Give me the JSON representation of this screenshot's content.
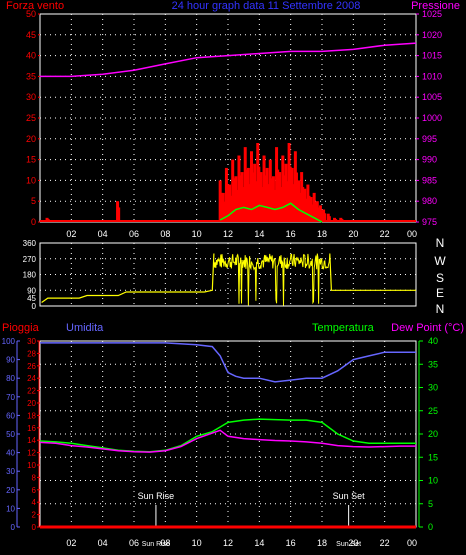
{
  "header": {
    "left_title": "Forza vento",
    "center_title": "24 hour graph data  11 Settembre 2008",
    "right_title": "Pressione"
  },
  "colors": {
    "background": "#000000",
    "grid": "#ffffff",
    "wind": "#ff0000",
    "gust": "#00ff00",
    "pressure": "#ff00ff",
    "direction": "#ffff00",
    "rain": "#ff0000",
    "humidity": "#6666ff",
    "temperature": "#00ff00",
    "dewpoint": "#ff00ff",
    "sun_markers": "#ffffff"
  },
  "bottom_header": {
    "rain_label": "Pioggia",
    "humidity_label": "Umidita",
    "temperature_label": "Temperatura",
    "dewpoint_label": "Dew Point (°C)"
  },
  "direction_letters": [
    "N",
    "W",
    "S",
    "E",
    "N"
  ],
  "sun_rise_label": "Sun Rise",
  "sun_set_label": "Sun Set",
  "chart_data": [
    {
      "type": "line",
      "title": "24 hour graph data  11 Settembre 2008",
      "x_tick_labels": [
        "02",
        "04",
        "06",
        "08",
        "10",
        "12",
        "14",
        "16",
        "18",
        "20",
        "22",
        "00"
      ],
      "left_axis": {
        "ticks": [
          0,
          5,
          10,
          15,
          20,
          25,
          30,
          35,
          40,
          45,
          50
        ],
        "ylim": [
          0,
          50
        ]
      },
      "right_axis": {
        "ticks": [
          975,
          980,
          985,
          990,
          995,
          1000,
          1005,
          1010,
          1015,
          1020,
          1025
        ],
        "ylim": [
          975,
          1025
        ]
      },
      "series": [
        {
          "name": "Forza vento",
          "axis": "left",
          "x": [
            0,
            1,
            2,
            3,
            4,
            5,
            6,
            7,
            8,
            9,
            10,
            11,
            12,
            13,
            14,
            15,
            16,
            17,
            18,
            19,
            20,
            21,
            22,
            23,
            24
          ],
          "values": [
            0,
            0,
            0,
            0,
            0,
            0,
            0,
            0,
            0,
            0,
            0,
            0,
            0,
            0,
            0,
            0,
            0,
            0,
            0,
            0,
            0,
            0,
            0,
            0,
            0
          ]
        },
        {
          "name": "Pressione",
          "axis": "right",
          "x": [
            0,
            2,
            4,
            6,
            8,
            10,
            12,
            14,
            16,
            18,
            20,
            22,
            24
          ],
          "values": [
            1010,
            1010,
            1010.5,
            1011.5,
            1013,
            1014.5,
            1015,
            1015.5,
            1016,
            1016,
            1016.5,
            1017.5,
            1018
          ]
        }
      ],
      "wind_bars": [
        {
          "x": 0.45,
          "v": 1
        },
        {
          "x": 4.95,
          "v": 5
        },
        {
          "x": 11.5,
          "v": 10
        },
        {
          "x": 11.7,
          "v": 7
        },
        {
          "x": 11.9,
          "v": 13
        },
        {
          "x": 12.1,
          "v": 9
        },
        {
          "x": 12.3,
          "v": 15
        },
        {
          "x": 12.5,
          "v": 11
        },
        {
          "x": 12.7,
          "v": 16
        },
        {
          "x": 12.9,
          "v": 12
        },
        {
          "x": 13.1,
          "v": 18
        },
        {
          "x": 13.3,
          "v": 13
        },
        {
          "x": 13.5,
          "v": 17
        },
        {
          "x": 13.7,
          "v": 14
        },
        {
          "x": 13.9,
          "v": 19
        },
        {
          "x": 14.1,
          "v": 12
        },
        {
          "x": 14.3,
          "v": 16
        },
        {
          "x": 14.5,
          "v": 13
        },
        {
          "x": 14.7,
          "v": 15
        },
        {
          "x": 14.9,
          "v": 11
        },
        {
          "x": 15.1,
          "v": 18
        },
        {
          "x": 15.3,
          "v": 12
        },
        {
          "x": 15.5,
          "v": 16
        },
        {
          "x": 15.7,
          "v": 14
        },
        {
          "x": 15.9,
          "v": 19
        },
        {
          "x": 16.1,
          "v": 13
        },
        {
          "x": 16.3,
          "v": 17
        },
        {
          "x": 16.5,
          "v": 10
        },
        {
          "x": 16.7,
          "v": 12
        },
        {
          "x": 16.9,
          "v": 8
        },
        {
          "x": 17.1,
          "v": 9
        },
        {
          "x": 17.3,
          "v": 6
        },
        {
          "x": 17.5,
          "v": 7
        },
        {
          "x": 17.7,
          "v": 5
        },
        {
          "x": 17.9,
          "v": 4
        },
        {
          "x": 18.1,
          "v": 3
        },
        {
          "x": 18.4,
          "v": 2
        },
        {
          "x": 18.8,
          "v": 1
        },
        {
          "x": 19.2,
          "v": 1
        }
      ],
      "gust_line": {
        "x": [
          11.5,
          12,
          12.5,
          13,
          13.5,
          14,
          14.5,
          15,
          15.5,
          16,
          16.5,
          17,
          17.5,
          18
        ],
        "values": [
          0.5,
          1.5,
          3,
          3.5,
          3,
          4,
          3.5,
          3,
          3.5,
          4.5,
          3,
          2,
          1,
          0
        ]
      }
    },
    {
      "type": "line",
      "title": "",
      "left_axis": {
        "ticks": [
          0,
          45,
          90,
          180,
          270,
          360
        ],
        "ylim": [
          0,
          360
        ]
      },
      "series": [
        {
          "name": "",
          "x": [
            0.1,
            0.5,
            2.5,
            3,
            5,
            5.5,
            10.5,
            11,
            11.1
          ],
          "values": [
            20,
            45,
            45,
            60,
            60,
            80,
            80,
            90,
            300
          ]
        },
        {
          "name": "",
          "x": [
            18.5,
            18.6,
            19,
            20,
            24
          ],
          "values": [
            300,
            90,
            90,
            90,
            90
          ]
        }
      ],
      "scatter_band": {
        "x_range": [
          11.1,
          18.5
        ],
        "center": 255,
        "spread": 45,
        "drops_to": 0
      }
    },
    {
      "type": "line",
      "title": "",
      "x_tick_labels": [
        "02",
        "04",
        "06",
        "Sun Rise",
        "08",
        "10",
        "12",
        "14",
        "16",
        "18",
        "Sun Set",
        "20",
        "22",
        "00"
      ],
      "axes": {
        "rain": {
          "ticks": [
            0,
            2,
            4,
            6,
            8,
            10,
            12,
            14,
            16,
            18,
            20,
            22,
            24,
            26,
            28,
            30
          ],
          "ylim": [
            0,
            30
          ]
        },
        "humidity": {
          "ticks": [
            0,
            10,
            20,
            30,
            40,
            50,
            60,
            70,
            80,
            90,
            100
          ],
          "ylim": [
            0,
            100
          ]
        },
        "temperature": {
          "ticks": [
            0,
            5,
            10,
            15,
            20,
            25,
            30,
            35,
            40
          ],
          "ylim": [
            0,
            40
          ]
        }
      },
      "sun_rise_hour": 7.4,
      "sun_set_hour": 19.7,
      "series": [
        {
          "name": "Pioggia",
          "axis": "rain",
          "x": [
            0,
            24
          ],
          "values": [
            0,
            0
          ]
        },
        {
          "name": "Umidita",
          "axis": "humidity",
          "x": [
            0,
            2,
            4,
            6,
            8,
            10,
            11,
            11.5,
            12,
            12.5,
            13,
            14,
            15,
            16,
            17,
            18,
            19,
            20,
            21,
            22,
            23,
            24
          ],
          "values": [
            99,
            99,
            99,
            99,
            99,
            98,
            97,
            92,
            83,
            81,
            80,
            80,
            78,
            79,
            80,
            80,
            84,
            90,
            92,
            94,
            94,
            94
          ]
        },
        {
          "name": "Temperatura",
          "axis": "temperature",
          "x": [
            0,
            1,
            2,
            3,
            4,
            5,
            6,
            7,
            8,
            9,
            10,
            11,
            11.5,
            12,
            13,
            14,
            15,
            16,
            17,
            18,
            19,
            20,
            21,
            22,
            23,
            24
          ],
          "values": [
            18.5,
            18.3,
            18,
            17.5,
            17,
            16.5,
            16.3,
            16.2,
            16.5,
            17.5,
            19.5,
            20.5,
            21.5,
            22.5,
            23,
            23.2,
            23.1,
            23,
            23,
            22.5,
            20,
            18.5,
            18,
            18,
            18,
            18
          ]
        },
        {
          "name": "Dew Point",
          "axis": "temperature",
          "x": [
            0,
            1,
            2,
            3,
            4,
            5,
            6,
            7,
            8,
            9,
            10,
            11,
            11.5,
            12,
            13,
            14,
            15,
            16,
            17,
            18,
            19,
            20,
            21,
            22,
            23,
            24
          ],
          "values": [
            18.2,
            18,
            17.5,
            17.2,
            16.8,
            16.4,
            16.2,
            16.1,
            16.4,
            17.3,
            19,
            20.2,
            20.8,
            19.5,
            19,
            18.8,
            18.6,
            18.5,
            18.3,
            18,
            17.5,
            17.3,
            17.2,
            17.3,
            17.4,
            17.4
          ]
        }
      ]
    }
  ]
}
